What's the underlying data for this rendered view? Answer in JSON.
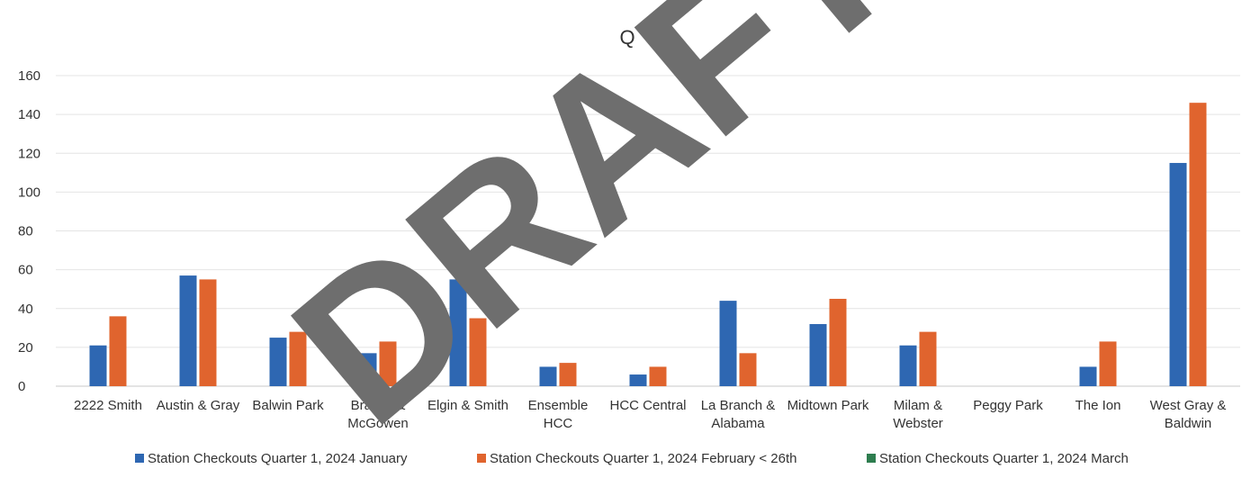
{
  "watermark": {
    "text": "DRAFT",
    "color": "#6e6e6e"
  },
  "chart_data": {
    "type": "bar",
    "title": "Q",
    "xlabel": "",
    "ylabel": "",
    "ylim": [
      0,
      160
    ],
    "yticks": [
      0,
      20,
      40,
      60,
      80,
      100,
      120,
      140,
      160
    ],
    "grid": true,
    "legend_position": "bottom",
    "categories": [
      [
        "2222 Smith"
      ],
      [
        "Austin & Gray"
      ],
      [
        "Balwin Park"
      ],
      [
        "Brazos &",
        "McGowen"
      ],
      [
        "Elgin & Smith"
      ],
      [
        "Ensemble",
        "HCC"
      ],
      [
        "HCC Central"
      ],
      [
        "La Branch &",
        "Alabama"
      ],
      [
        "Midtown Park"
      ],
      [
        "Milam &",
        "Webster"
      ],
      [
        "Peggy Park"
      ],
      [
        "The Ion"
      ],
      [
        "West Gray &",
        "Baldwin"
      ]
    ],
    "series": [
      {
        "name": "Station Checkouts Quarter 1, 2024 January",
        "color": "#2e67b2",
        "values": [
          21,
          57,
          25,
          17,
          55,
          10,
          6,
          44,
          32,
          21,
          0,
          10,
          115
        ]
      },
      {
        "name": "Station Checkouts Quarter 1, 2024 February < 26th",
        "color": "#e0642e",
        "values": [
          36,
          55,
          28,
          23,
          35,
          12,
          10,
          17,
          45,
          28,
          0,
          23,
          146
        ]
      },
      {
        "name": "Station Checkouts Quarter 1, 2024 March",
        "color": "#2e7d4f",
        "values": [
          0,
          0,
          0,
          0,
          0,
          0,
          0,
          0,
          0,
          0,
          0,
          0,
          0
        ]
      }
    ]
  }
}
